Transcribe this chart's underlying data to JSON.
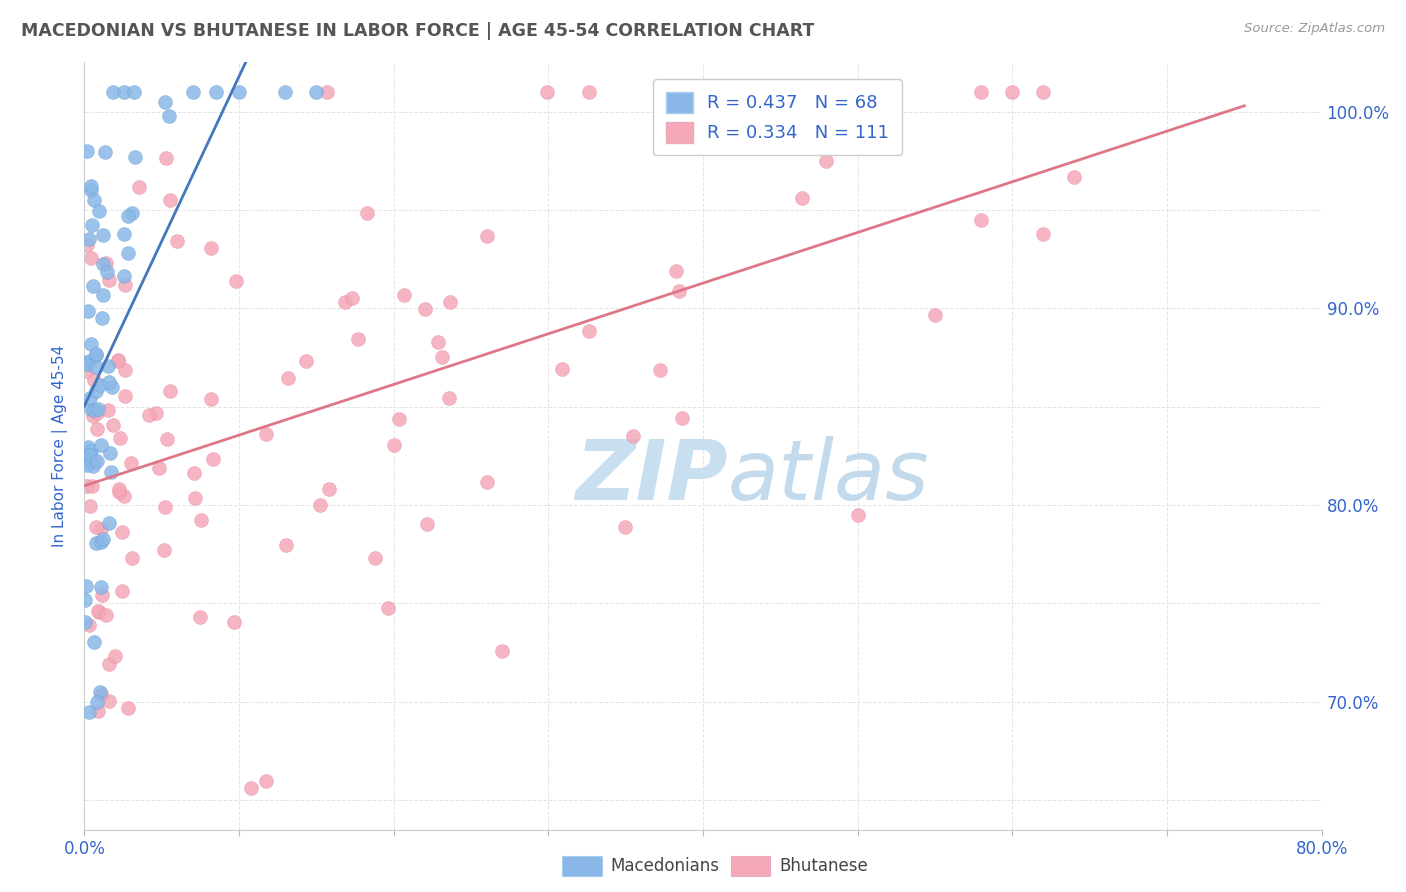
{
  "title": "MACEDONIAN VS BHUTANESE IN LABOR FORCE | AGE 45-54 CORRELATION CHART",
  "source_text": "Source: ZipAtlas.com",
  "ylabel": "In Labor Force | Age 45-54",
  "xlim": [
    0.0,
    0.8
  ],
  "ylim": [
    0.635,
    1.025
  ],
  "blue_color": "#89B8E8",
  "blue_edge_color": "#6699CC",
  "pink_color": "#F4A8B8",
  "pink_edge_color": "#E8829A",
  "blue_line_color": "#4477BB",
  "blue_dash_color": "#AABBDD",
  "pink_line_color": "#DD7788",
  "legend_text_color": "#3366CC",
  "title_color": "#555555",
  "axis_label_color": "#3366CC",
  "watermark_color": "#C8DFF0",
  "grid_color": "#DDDDDD"
}
